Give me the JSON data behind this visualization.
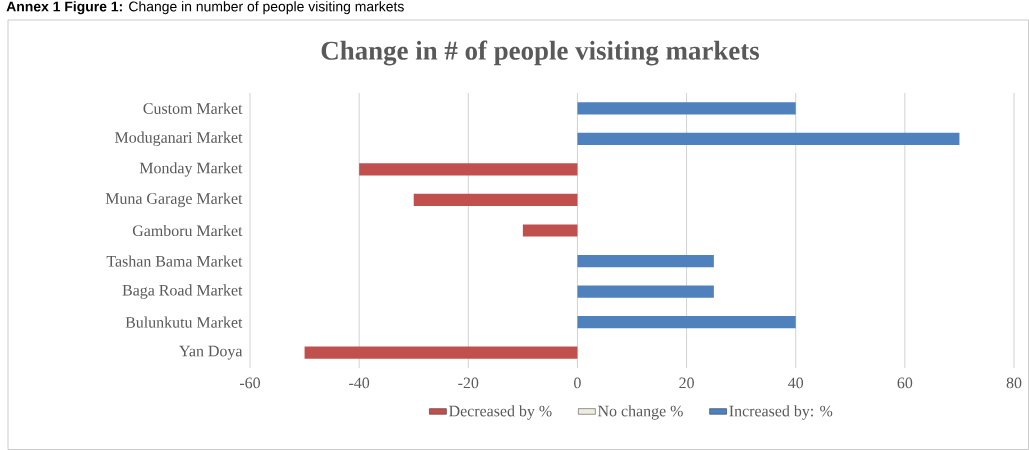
{
  "chart_data": {
    "type": "bar",
    "orientation": "horizontal",
    "stacked": true,
    "title": "Change in # of people visiting markets",
    "annotations": [
      "**Annex 1 Figure 1:** Change in number of people visiting markets"
    ],
    "categories": [
      "Custom Market",
      "Moduganari Market",
      "Monday Market",
      "Muna Garage Market",
      "Gamboru Market",
      "Tashan Bama Market",
      "Baga Road Market",
      "Bulunkutu Market",
      "Yan Doya"
    ],
    "series": [
      {
        "name": "Decreased by %",
        "color": "#c0504d",
        "values": [
          null,
          null,
          -40,
          -30,
          -10,
          null,
          null,
          null,
          -50
        ]
      },
      {
        "name": "No change %",
        "color": "#eeece1",
        "values": [
          null,
          null,
          null,
          null,
          null,
          null,
          null,
          null,
          null
        ]
      },
      {
        "name": "Increased by: %",
        "color": "#4f81bd",
        "values": [
          40,
          70,
          null,
          null,
          null,
          25,
          25,
          40,
          null
        ]
      }
    ],
    "xlim": [
      -60,
      80
    ],
    "xticks": [
      -60,
      -40,
      -20,
      0,
      20,
      40,
      60,
      80
    ],
    "grid": "x",
    "legend": "bottom"
  }
}
